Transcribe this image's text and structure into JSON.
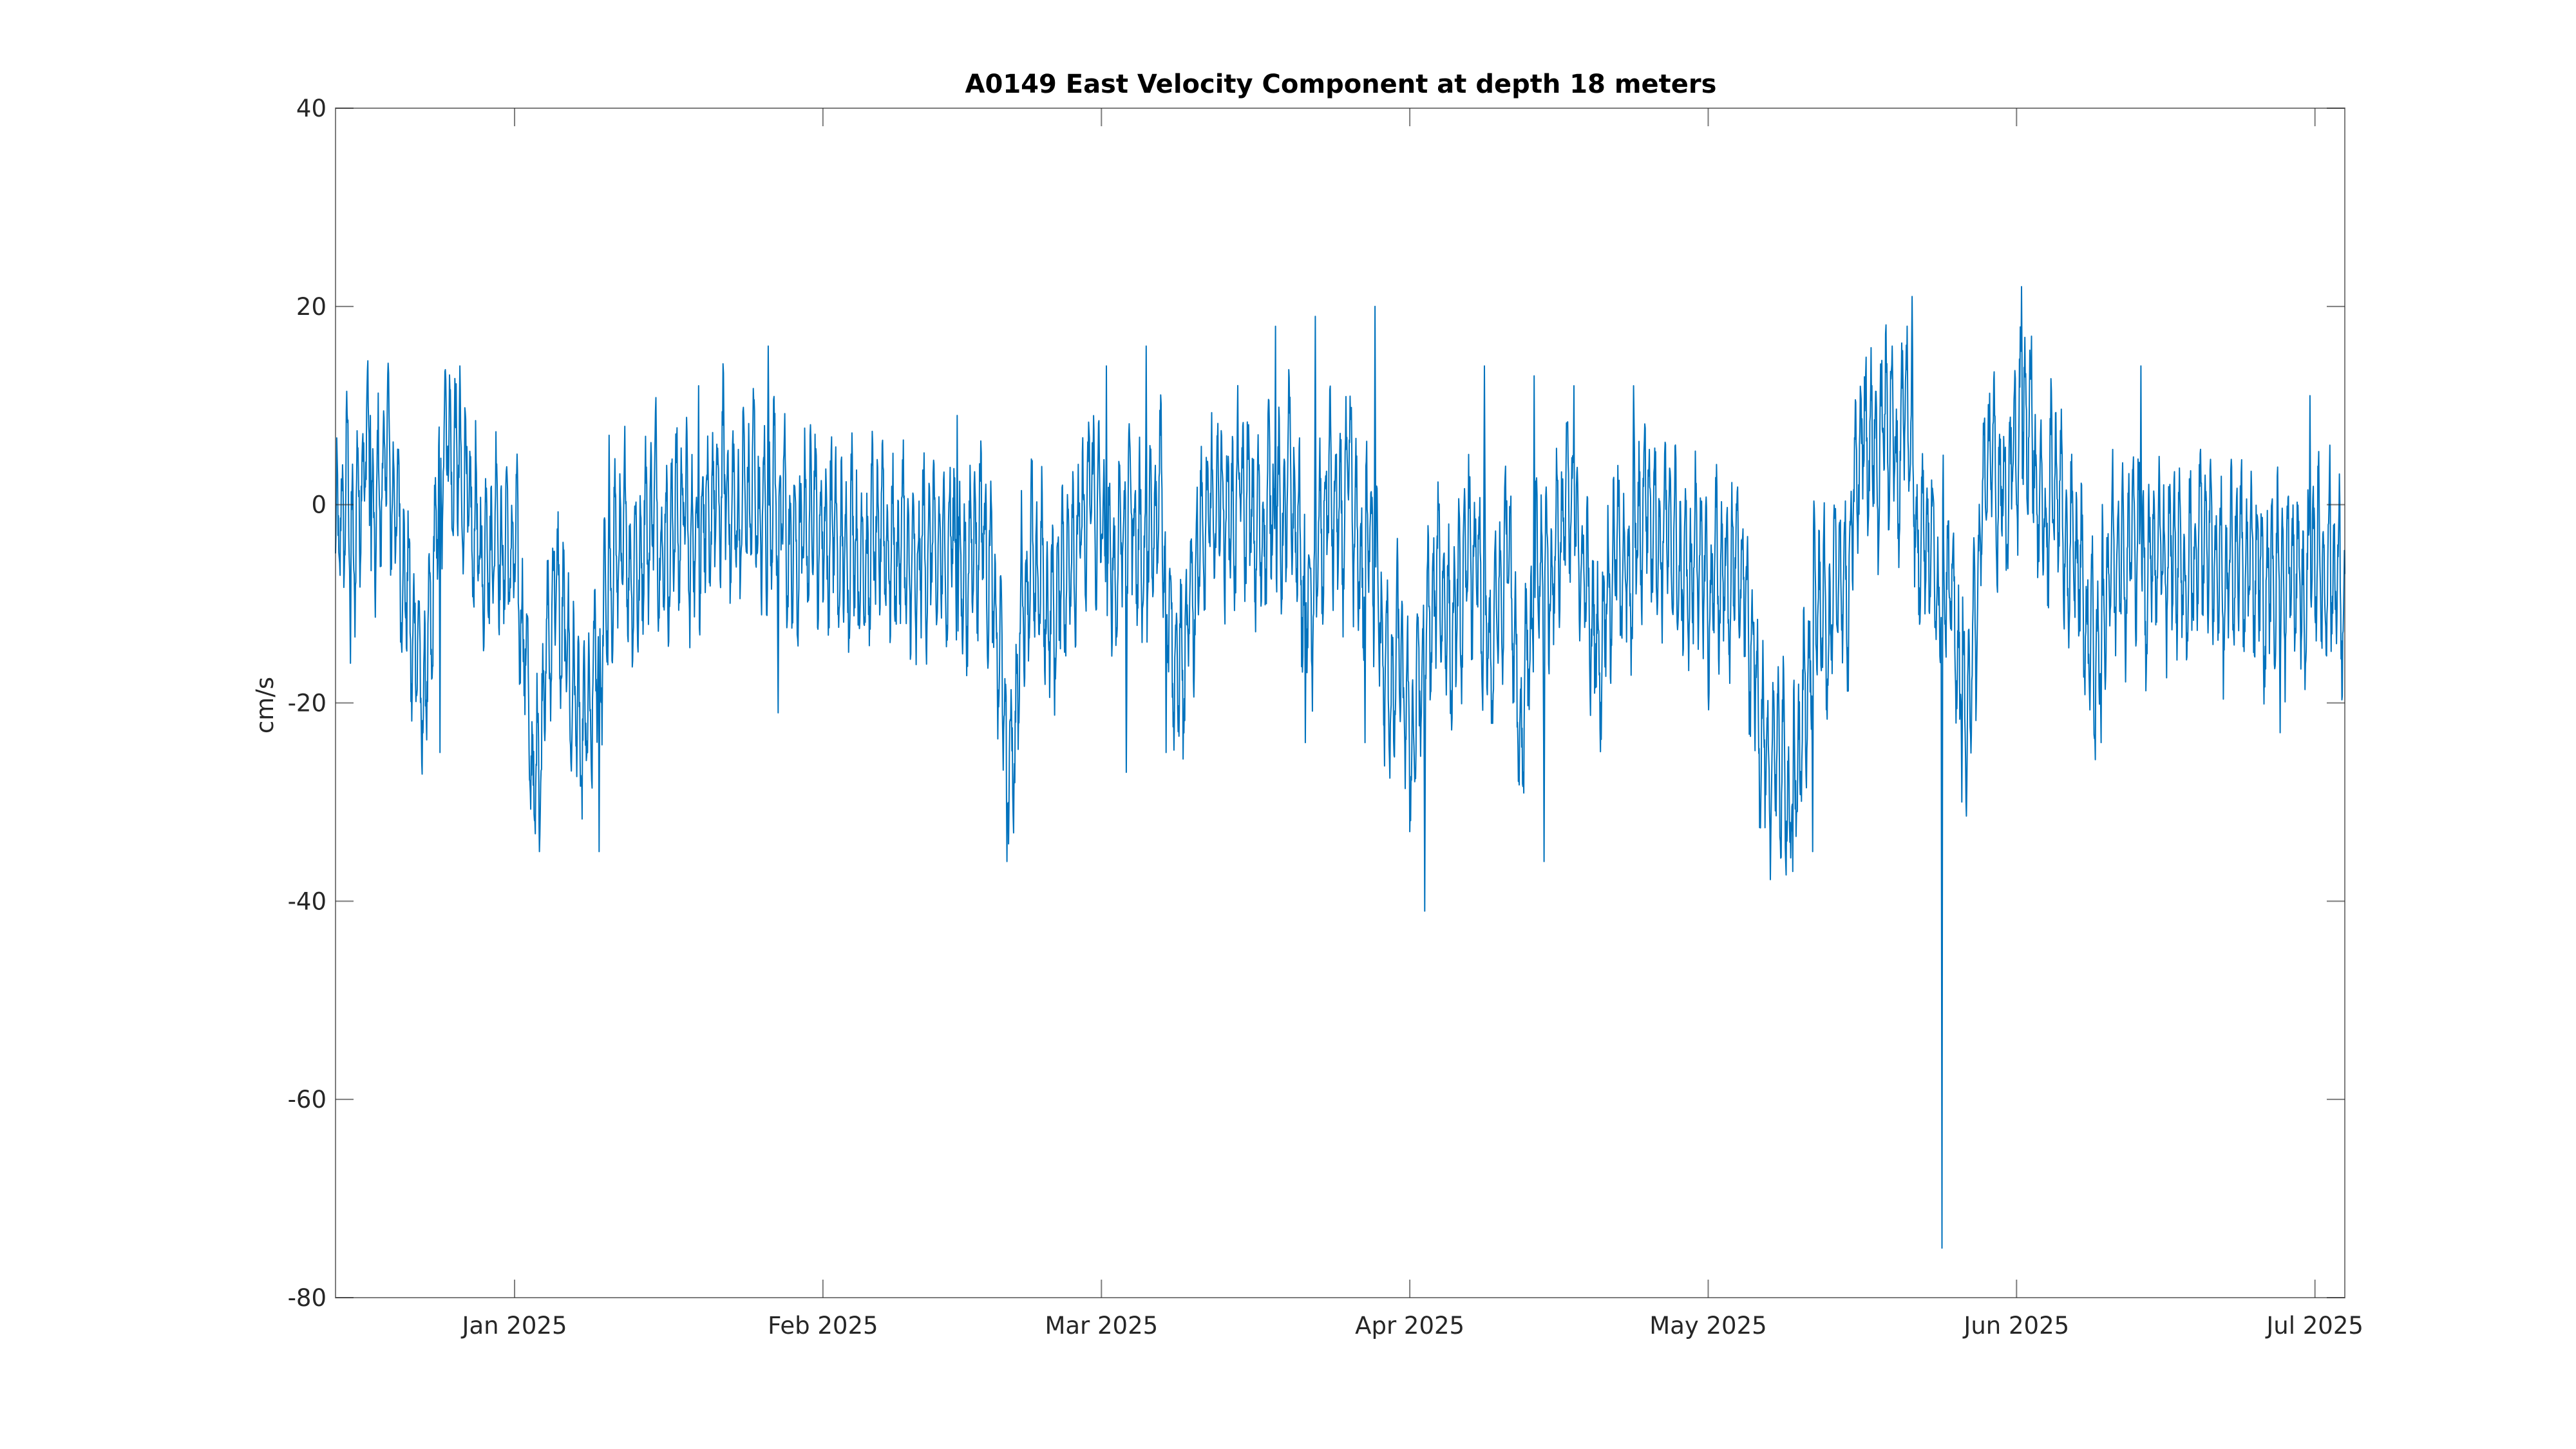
{
  "chart_data": {
    "type": "line",
    "title": "A0149 East Velocity Component at depth 18 meters",
    "xlabel": "",
    "ylabel": "cm/s",
    "xlim": [
      "2024-12-14",
      "2025-07-04"
    ],
    "ylim": [
      -80,
      40
    ],
    "x_ticks": [
      {
        "date": "2025-01-01",
        "label": "Jan 2025"
      },
      {
        "date": "2025-02-01",
        "label": "Feb 2025"
      },
      {
        "date": "2025-03-01",
        "label": "Mar 2025"
      },
      {
        "date": "2025-04-01",
        "label": "Apr 2025"
      },
      {
        "date": "2025-05-01",
        "label": "May 2025"
      },
      {
        "date": "2025-06-01",
        "label": "Jun 2025"
      },
      {
        "date": "2025-07-01",
        "label": "Jul 2025"
      }
    ],
    "y_ticks": [
      {
        "value": 40,
        "label": "40"
      },
      {
        "value": 20,
        "label": "20"
      },
      {
        "value": 0,
        "label": "0"
      },
      {
        "value": -20,
        "label": "-20"
      },
      {
        "value": -40,
        "label": "-40"
      },
      {
        "value": -60,
        "label": "-60"
      },
      {
        "value": -80,
        "label": "-80"
      }
    ],
    "grid": false,
    "series": [
      {
        "color": "#0072BD",
        "points": [
          [
            "2024-12-14",
            -6
          ],
          [
            "2024-12-15",
            2
          ],
          [
            "2024-12-16",
            -4
          ],
          [
            "2024-12-17",
            7
          ],
          [
            "2024-12-18",
            -3
          ],
          [
            "2024-12-19",
            6
          ],
          [
            "2024-12-20",
            0
          ],
          [
            "2024-12-21",
            -8
          ],
          [
            "2024-12-22",
            -14
          ],
          [
            "2024-12-23",
            -20
          ],
          [
            "2024-12-24",
            -5
          ],
          [
            "2024-12-25",
            8
          ],
          [
            "2024-12-26",
            4
          ],
          [
            "2024-12-27",
            2
          ],
          [
            "2024-12-28",
            -3
          ],
          [
            "2024-12-29",
            -6
          ],
          [
            "2024-12-30",
            -2
          ],
          [
            "2024-12-31",
            -5
          ],
          [
            "2025-01-01",
            -4
          ],
          [
            "2025-01-02",
            -14
          ],
          [
            "2025-01-03",
            -30
          ],
          [
            "2025-01-04",
            -18
          ],
          [
            "2025-01-05",
            -8
          ],
          [
            "2025-01-06",
            -13
          ],
          [
            "2025-01-07",
            -20
          ],
          [
            "2025-01-08",
            -24
          ],
          [
            "2025-01-09",
            -18
          ],
          [
            "2025-01-10",
            -12
          ],
          [
            "2025-01-11",
            -6
          ],
          [
            "2025-01-12",
            -3
          ],
          [
            "2025-01-13",
            -8
          ],
          [
            "2025-01-14",
            -4
          ],
          [
            "2025-01-15",
            1
          ],
          [
            "2025-01-16",
            -6
          ],
          [
            "2025-01-17",
            -2
          ],
          [
            "2025-01-18",
            0
          ],
          [
            "2025-01-19",
            -5
          ],
          [
            "2025-01-20",
            -2
          ],
          [
            "2025-01-21",
            -1
          ],
          [
            "2025-01-22",
            3
          ],
          [
            "2025-01-23",
            -2
          ],
          [
            "2025-01-24",
            0
          ],
          [
            "2025-01-25",
            2
          ],
          [
            "2025-01-26",
            -3
          ],
          [
            "2025-01-27",
            1
          ],
          [
            "2025-01-28",
            -1
          ],
          [
            "2025-01-29",
            -6
          ],
          [
            "2025-01-30",
            -3
          ],
          [
            "2025-01-31",
            0
          ],
          [
            "2025-02-01",
            -4
          ],
          [
            "2025-02-02",
            -2
          ],
          [
            "2025-02-03",
            -6
          ],
          [
            "2025-02-04",
            -3
          ],
          [
            "2025-02-05",
            -7
          ],
          [
            "2025-02-06",
            -4
          ],
          [
            "2025-02-07",
            -2
          ],
          [
            "2025-02-08",
            -6
          ],
          [
            "2025-02-09",
            -3
          ],
          [
            "2025-02-10",
            -8
          ],
          [
            "2025-02-11",
            -5
          ],
          [
            "2025-02-12",
            -4
          ],
          [
            "2025-02-13",
            -6
          ],
          [
            "2025-02-14",
            -3
          ],
          [
            "2025-02-15",
            -9
          ],
          [
            "2025-02-16",
            -4
          ],
          [
            "2025-02-17",
            -2
          ],
          [
            "2025-02-18",
            -8
          ],
          [
            "2025-02-19",
            -18
          ],
          [
            "2025-02-20",
            -28
          ],
          [
            "2025-02-21",
            -10
          ],
          [
            "2025-02-22",
            -6
          ],
          [
            "2025-02-23",
            -8
          ],
          [
            "2025-02-24",
            -12
          ],
          [
            "2025-02-25",
            -7
          ],
          [
            "2025-02-26",
            -5
          ],
          [
            "2025-02-27",
            -3
          ],
          [
            "2025-02-28",
            2
          ],
          [
            "2025-03-01",
            -2
          ],
          [
            "2025-03-02",
            -8
          ],
          [
            "2025-03-03",
            -3
          ],
          [
            "2025-03-04",
            0
          ],
          [
            "2025-03-05",
            -6
          ],
          [
            "2025-03-06",
            -4
          ],
          [
            "2025-03-07",
            2
          ],
          [
            "2025-03-08",
            -14
          ],
          [
            "2025-03-09",
            -18
          ],
          [
            "2025-03-10",
            -10
          ],
          [
            "2025-03-11",
            -3
          ],
          [
            "2025-03-12",
            -1
          ],
          [
            "2025-03-13",
            1
          ],
          [
            "2025-03-14",
            -2
          ],
          [
            "2025-03-15",
            2
          ],
          [
            "2025-03-16",
            -1
          ],
          [
            "2025-03-17",
            -4
          ],
          [
            "2025-03-18",
            1
          ],
          [
            "2025-03-19",
            -3
          ],
          [
            "2025-03-20",
            3
          ],
          [
            "2025-03-21",
            -6
          ],
          [
            "2025-03-22",
            -12
          ],
          [
            "2025-03-23",
            -4
          ],
          [
            "2025-03-24",
            2
          ],
          [
            "2025-03-25",
            -3
          ],
          [
            "2025-03-26",
            4
          ],
          [
            "2025-03-27",
            -8
          ],
          [
            "2025-03-28",
            -1
          ],
          [
            "2025-03-29",
            -12
          ],
          [
            "2025-03-30",
            -20
          ],
          [
            "2025-03-31",
            -14
          ],
          [
            "2025-04-01",
            -25
          ],
          [
            "2025-04-02",
            -18
          ],
          [
            "2025-04-03",
            -12
          ],
          [
            "2025-04-04",
            -6
          ],
          [
            "2025-04-05",
            -14
          ],
          [
            "2025-04-06",
            -10
          ],
          [
            "2025-04-07",
            -4
          ],
          [
            "2025-04-08",
            -8
          ],
          [
            "2025-04-09",
            -16
          ],
          [
            "2025-04-10",
            -10
          ],
          [
            "2025-04-11",
            -2
          ],
          [
            "2025-04-12",
            -24
          ],
          [
            "2025-04-13",
            -14
          ],
          [
            "2025-04-14",
            -6
          ],
          [
            "2025-04-15",
            -8
          ],
          [
            "2025-04-16",
            -3
          ],
          [
            "2025-04-17",
            1
          ],
          [
            "2025-04-18",
            -4
          ],
          [
            "2025-04-19",
            -10
          ],
          [
            "2025-04-20",
            -16
          ],
          [
            "2025-04-21",
            -8
          ],
          [
            "2025-04-22",
            -4
          ],
          [
            "2025-04-23",
            -9
          ],
          [
            "2025-04-24",
            -2
          ],
          [
            "2025-04-25",
            1
          ],
          [
            "2025-04-26",
            -4
          ],
          [
            "2025-04-27",
            -2
          ],
          [
            "2025-04-28",
            -6
          ],
          [
            "2025-04-29",
            -8
          ],
          [
            "2025-04-30",
            -4
          ],
          [
            "2025-05-01",
            -10
          ],
          [
            "2025-05-02",
            -6
          ],
          [
            "2025-05-03",
            -8
          ],
          [
            "2025-05-04",
            -5
          ],
          [
            "2025-05-05",
            -12
          ],
          [
            "2025-05-06",
            -20
          ],
          [
            "2025-05-07",
            -28
          ],
          [
            "2025-05-08",
            -24
          ],
          [
            "2025-05-09",
            -30
          ],
          [
            "2025-05-10",
            -26
          ],
          [
            "2025-05-11",
            -18
          ],
          [
            "2025-05-12",
            -8
          ],
          [
            "2025-05-13",
            -14
          ],
          [
            "2025-05-14",
            -6
          ],
          [
            "2025-05-15",
            -10
          ],
          [
            "2025-05-16",
            5
          ],
          [
            "2025-05-17",
            8
          ],
          [
            "2025-05-18",
            4
          ],
          [
            "2025-05-19",
            10
          ],
          [
            "2025-05-20",
            3
          ],
          [
            "2025-05-21",
            12
          ],
          [
            "2025-05-22",
            -4
          ],
          [
            "2025-05-23",
            -2
          ],
          [
            "2025-05-24",
            -8
          ],
          [
            "2025-05-25",
            -6
          ],
          [
            "2025-05-26",
            -14
          ],
          [
            "2025-05-27",
            -22
          ],
          [
            "2025-05-28",
            -10
          ],
          [
            "2025-05-29",
            6
          ],
          [
            "2025-05-30",
            2
          ],
          [
            "2025-05-31",
            1
          ],
          [
            "2025-06-01",
            6
          ],
          [
            "2025-06-02",
            10
          ],
          [
            "2025-06-03",
            2
          ],
          [
            "2025-06-04",
            -2
          ],
          [
            "2025-06-05",
            4
          ],
          [
            "2025-06-06",
            -6
          ],
          [
            "2025-06-07",
            -4
          ],
          [
            "2025-06-08",
            -12
          ],
          [
            "2025-06-09",
            -16
          ],
          [
            "2025-06-10",
            -8
          ],
          [
            "2025-06-11",
            -4
          ],
          [
            "2025-06-12",
            -6
          ],
          [
            "2025-06-13",
            -2
          ],
          [
            "2025-06-14",
            -8
          ],
          [
            "2025-06-15",
            -3
          ],
          [
            "2025-06-16",
            -6
          ],
          [
            "2025-06-17",
            -4
          ],
          [
            "2025-06-18",
            -8
          ],
          [
            "2025-06-19",
            -5
          ],
          [
            "2025-06-20",
            -3
          ],
          [
            "2025-06-21",
            -6
          ],
          [
            "2025-06-22",
            -9
          ],
          [
            "2025-06-23",
            -4
          ],
          [
            "2025-06-24",
            -7
          ],
          [
            "2025-06-25",
            -5
          ],
          [
            "2025-06-26",
            -10
          ],
          [
            "2025-06-27",
            -6
          ],
          [
            "2025-06-28",
            -8
          ],
          [
            "2025-06-29",
            -6
          ],
          [
            "2025-06-30",
            -10
          ],
          [
            "2025-07-01",
            -4
          ],
          [
            "2025-07-02",
            -8
          ],
          [
            "2025-07-03",
            -6
          ],
          [
            "2025-07-04",
            -12
          ]
        ],
        "spikes": [
          [
            "2024-12-15",
            -16
          ],
          [
            "2024-12-17",
            9
          ],
          [
            "2024-12-24",
            -25
          ],
          [
            "2024-12-26",
            14
          ],
          [
            "2025-01-03",
            -35
          ],
          [
            "2025-01-09",
            -35
          ],
          [
            "2025-01-10",
            7
          ],
          [
            "2025-01-19",
            12
          ],
          [
            "2025-01-26",
            16
          ],
          [
            "2025-01-27",
            -21
          ],
          [
            "2025-02-14",
            9
          ],
          [
            "2025-02-19",
            -36
          ],
          [
            "2025-03-01",
            14
          ],
          [
            "2025-03-03",
            -27
          ],
          [
            "2025-03-05",
            16
          ],
          [
            "2025-03-07",
            -25
          ],
          [
            "2025-03-18",
            18
          ],
          [
            "2025-03-21",
            -24
          ],
          [
            "2025-03-22",
            19
          ],
          [
            "2025-03-27",
            -24
          ],
          [
            "2025-03-28",
            20
          ],
          [
            "2025-04-02",
            -41
          ],
          [
            "2025-04-08",
            14
          ],
          [
            "2025-04-13",
            13
          ],
          [
            "2025-04-14",
            -36
          ],
          [
            "2025-04-17",
            12
          ],
          [
            "2025-04-23",
            12
          ],
          [
            "2025-05-09",
            -37
          ],
          [
            "2025-05-11",
            -35
          ],
          [
            "2025-05-19",
            16
          ],
          [
            "2025-05-21",
            21
          ],
          [
            "2025-05-24",
            -75
          ],
          [
            "2025-05-26",
            -30
          ],
          [
            "2025-06-01",
            22
          ],
          [
            "2025-06-02",
            17
          ],
          [
            "2025-06-09",
            -24
          ],
          [
            "2025-06-13",
            14
          ],
          [
            "2025-06-27",
            -23
          ],
          [
            "2025-06-30",
            11
          ],
          [
            "2025-07-02",
            6
          ]
        ]
      }
    ]
  }
}
